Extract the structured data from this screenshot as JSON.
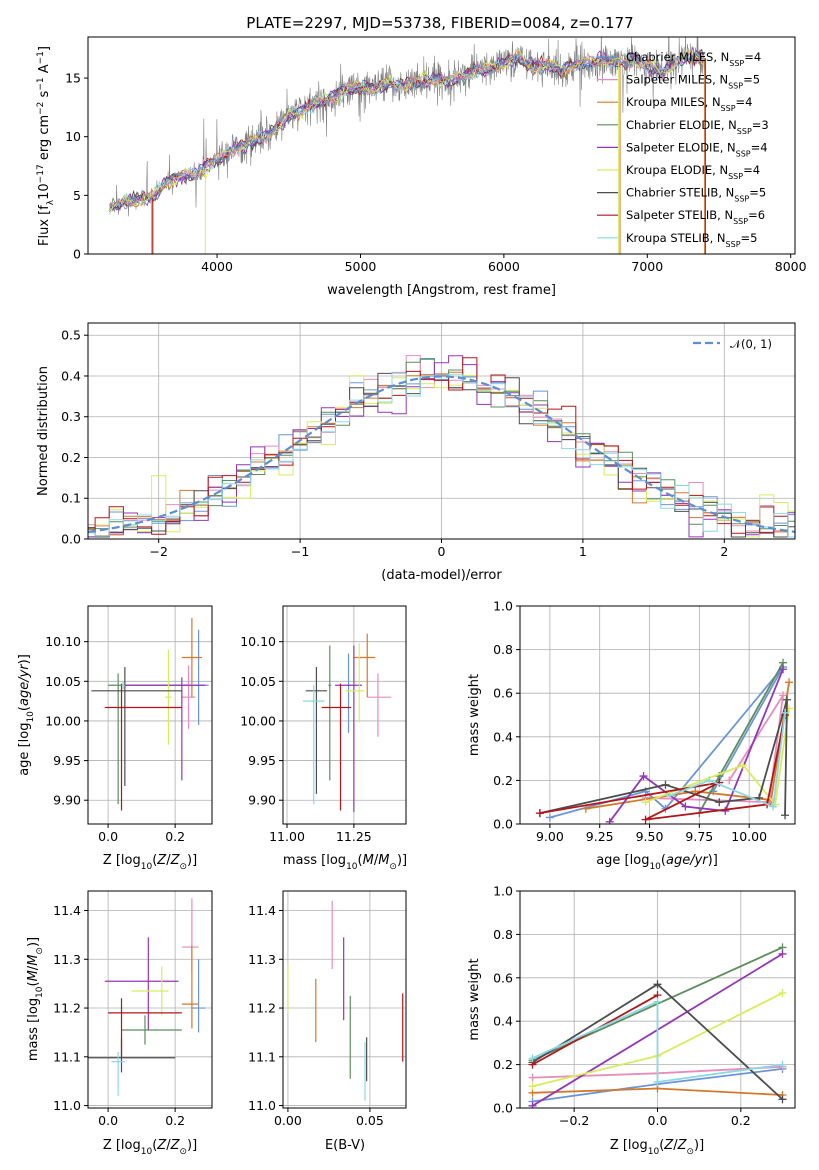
{
  "title": "PLATE=2297, MJD=53738, FIBERID=0084, z=0.177",
  "palette": {
    "c1": "#6a96d8",
    "c2": "#e88cbc",
    "c3": "#d5782a",
    "c4": "#5c8e5c",
    "c5": "#9236b5",
    "c6": "#d8ec5a",
    "c7": "#4d4d4d",
    "c8": "#b3161a",
    "c9": "#8ad8e4",
    "obs": "#808080",
    "gauss": "#5d8fd0"
  },
  "models": [
    {
      "key": "c1",
      "name": "Chabrier MILES",
      "nssp": "4"
    },
    {
      "key": "c2",
      "name": "Salpeter MILES",
      "nssp": "5"
    },
    {
      "key": "c3",
      "name": "Kroupa MILES",
      "nssp": "4"
    },
    {
      "key": "c4",
      "name": "Chabrier ELODIE",
      "nssp": "3"
    },
    {
      "key": "c5",
      "name": "Salpeter ELODIE",
      "nssp": "4"
    },
    {
      "key": "c6",
      "name": "Kroupa ELODIE",
      "nssp": "4"
    },
    {
      "key": "c7",
      "name": "Chabrier STELIB",
      "nssp": "5"
    },
    {
      "key": "c8",
      "name": "Salpeter STELIB",
      "nssp": "6"
    },
    {
      "key": "c9",
      "name": "Kroupa STELIB",
      "nssp": "5"
    }
  ],
  "chart_data": [
    {
      "id": "spectrum",
      "type": "line",
      "xlabel": "wavelength [Angstrom, rest frame]",
      "ylabel": "Flux [f_λ 10^-17 erg cm^-2 s^-1 A^-1]",
      "xlim": [
        3100,
        8030
      ],
      "ylim": [
        0,
        18.5
      ],
      "xticks": [
        4000,
        5000,
        6000,
        7000,
        8000
      ],
      "yticks": [
        0,
        5,
        10,
        15
      ],
      "continuum": [
        [
          3250,
          3.9
        ],
        [
          3350,
          4.5
        ],
        [
          3450,
          4.6
        ],
        [
          3550,
          4.8
        ],
        [
          3650,
          6.2
        ],
        [
          3750,
          6.6
        ],
        [
          3850,
          6.8
        ],
        [
          3950,
          7.6
        ],
        [
          4000,
          8.0
        ],
        [
          4100,
          8.9
        ],
        [
          4200,
          9.3
        ],
        [
          4300,
          9.8
        ],
        [
          4400,
          10.5
        ],
        [
          4500,
          11.8
        ],
        [
          4600,
          12.3
        ],
        [
          4700,
          12.9
        ],
        [
          4800,
          13.4
        ],
        [
          4900,
          14.0
        ],
        [
          5000,
          14.3
        ],
        [
          5100,
          14.0
        ],
        [
          5200,
          14.6
        ],
        [
          5300,
          14.3
        ],
        [
          5400,
          14.7
        ],
        [
          5500,
          14.9
        ],
        [
          5600,
          14.7
        ],
        [
          5700,
          15.2
        ],
        [
          5800,
          15.6
        ],
        [
          5900,
          15.8
        ],
        [
          6000,
          16.2
        ],
        [
          6100,
          16.8
        ],
        [
          6200,
          15.9
        ],
        [
          6300,
          16.1
        ],
        [
          6400,
          15.7
        ],
        [
          6500,
          16.1
        ],
        [
          6600,
          16.4
        ],
        [
          6700,
          16.5
        ],
        [
          6800,
          16.3
        ],
        [
          6900,
          16.6
        ],
        [
          7000,
          16.0
        ],
        [
          7100,
          15.5
        ],
        [
          7200,
          16.4
        ],
        [
          7300,
          16.9
        ],
        [
          7400,
          16.7
        ]
      ],
      "legend": "top-right",
      "grid": false
    },
    {
      "id": "residuals",
      "type": "histogram",
      "xlabel": "(data-model)/error",
      "ylabel": "Normed distribution",
      "xlim": [
        -2.5,
        2.5
      ],
      "ylim": [
        0,
        0.53
      ],
      "xticks": [
        -2,
        -1,
        0,
        1,
        2
      ],
      "yticks": [
        0.0,
        0.1,
        0.2,
        0.3,
        0.4,
        0.5
      ],
      "bin_width": 0.1,
      "gaussian_label": "𝒩(0, 1)",
      "legend": "top-right",
      "grid": true
    },
    {
      "id": "age_vs_Z",
      "type": "scatter",
      "xlabel": "Z [log10(Z/Z⊙)]",
      "ylabel": "age  [log10(age/yr)]",
      "xlim": [
        -0.06,
        0.31
      ],
      "ylim": [
        9.87,
        10.145
      ],
      "xticks": [
        0.0,
        0.2
      ],
      "yticks": [
        9.9,
        9.95,
        10.0,
        10.05,
        10.1
      ],
      "points": [
        {
          "c": "c1",
          "x": 0.27,
          "y": 10.045,
          "xl": 0.06,
          "xh": 0.03,
          "yl": 0.05,
          "yh": 0.07
        },
        {
          "c": "c2",
          "x": 0.24,
          "y": 10.03,
          "xl": 0.02,
          "xh": 0.02,
          "yl": 0.04,
          "yh": 0.04
        },
        {
          "c": "c3",
          "x": 0.25,
          "y": 10.08,
          "xl": 0.03,
          "xh": 0.03,
          "yl": 0.05,
          "yh": 0.05
        },
        {
          "c": "c4",
          "x": 0.03,
          "y": 10.045,
          "xl": 0.03,
          "xh": 0.2,
          "yl": 0.15,
          "yh": 0.015
        },
        {
          "c": "c5",
          "x": 0.22,
          "y": 10.045,
          "xl": 0.17,
          "xh": 0.07,
          "yl": 0.12,
          "yh": 0.01
        },
        {
          "c": "c6",
          "x": 0.18,
          "y": 10.03,
          "xl": 0.01,
          "xh": 0.01,
          "yl": 0.06,
          "yh": 0.06
        },
        {
          "c": "c7",
          "x": 0.05,
          "y": 10.038,
          "xl": 0.1,
          "xh": 0.17,
          "yl": 0.12,
          "yh": 0.03
        },
        {
          "c": "c8",
          "x": 0.04,
          "y": 10.017,
          "xl": 0.05,
          "xh": 0.18,
          "yl": 0.13,
          "yh": 0.03
        },
        {
          "c": "c9",
          "x": 0.045,
          "y": 10.045,
          "xl": 0.005,
          "xh": 0.005,
          "yl": 0.005,
          "yh": 0.005
        }
      ]
    },
    {
      "id": "age_vs_mass",
      "type": "scatter",
      "xlabel": "mass [log10(M/M⊙)]",
      "ylabel": "",
      "xlim": [
        10.985,
        11.445
      ],
      "ylim": [
        9.87,
        10.145
      ],
      "xticks": [
        11.0,
        11.25
      ],
      "yticks": [
        9.9,
        9.95,
        10.0,
        10.05,
        10.1
      ],
      "points": [
        {
          "c": "c1",
          "x": 11.23,
          "y": 10.045,
          "xl": 0.005,
          "xh": 0.005,
          "yl": 0.06,
          "yh": 0.04
        },
        {
          "c": "c2",
          "x": 11.34,
          "y": 10.03,
          "xl": 0.04,
          "xh": 0.05,
          "yl": 0.05,
          "yh": 0.03
        },
        {
          "c": "c3",
          "x": 11.3,
          "y": 10.08,
          "xl": 0.05,
          "xh": 0.03,
          "yl": 0.05,
          "yh": 0.03
        },
        {
          "c": "c4",
          "x": 11.16,
          "y": 10.045,
          "xl": 0.005,
          "xh": 0.005,
          "yl": 0.12,
          "yh": 0.05
        },
        {
          "c": "c5",
          "x": 11.25,
          "y": 10.045,
          "xl": 0.07,
          "xh": 0.03,
          "yl": 0.16,
          "yh": 0.05
        },
        {
          "c": "c6",
          "x": 11.27,
          "y": 10.038,
          "xl": 0.05,
          "xh": 0.02,
          "yl": 0.04,
          "yh": 0.06
        },
        {
          "c": "c7",
          "x": 11.11,
          "y": 10.038,
          "xl": 0.04,
          "xh": 0.04,
          "yl": 0.13,
          "yh": 0.03
        },
        {
          "c": "c8",
          "x": 11.2,
          "y": 10.017,
          "xl": 0.07,
          "xh": 0.04,
          "yl": 0.13,
          "yh": 0.03
        },
        {
          "c": "c9",
          "x": 11.1,
          "y": 10.025,
          "xl": 0.04,
          "xh": 0.04,
          "yl": 0.13,
          "yh": 0.02
        }
      ]
    },
    {
      "id": "mass_weight_vs_age",
      "type": "line",
      "xlabel": "age  [log10(age/yr)]",
      "ylabel": "mass weight",
      "xlim": [
        8.85,
        10.23
      ],
      "ylim": [
        0,
        1
      ],
      "xticks": [
        9.0,
        9.25,
        9.5,
        9.75,
        10.0
      ],
      "yticks": [
        0.0,
        0.2,
        0.4,
        0.6,
        0.8,
        1.0
      ],
      "grid": true,
      "series": [
        {
          "c": "c1",
          "x": [
            9.0,
            9.48,
            9.58,
            10.17,
            9.82
          ],
          "y": [
            0.03,
            0.15,
            0.07,
            0.72,
            0.15
          ]
        },
        {
          "c": "c2",
          "x": [
            9.48,
            10.1,
            10.17,
            9.9
          ],
          "y": [
            0.12,
            0.1,
            0.59,
            0.2
          ]
        },
        {
          "c": "c3",
          "x": [
            9.18,
            9.73,
            10.11,
            10.2
          ],
          "y": [
            0.07,
            0.15,
            0.11,
            0.65
          ]
        },
        {
          "c": "c4",
          "x": [
            9.75,
            9.85,
            10.17
          ],
          "y": [
            0.05,
            0.22,
            0.74
          ]
        },
        {
          "c": "c5",
          "x": [
            9.3,
            9.47,
            9.68,
            9.88,
            10.17
          ],
          "y": [
            0.01,
            0.22,
            0.08,
            0.06,
            0.71
          ]
        },
        {
          "c": "c6",
          "x": [
            9.48,
            9.97,
            10.13,
            10.2
          ],
          "y": [
            0.1,
            0.27,
            0.09,
            0.53
          ]
        },
        {
          "c": "c7",
          "x": [
            8.95,
            9.58,
            9.85,
            10.05,
            10.19,
            10.18
          ],
          "y": [
            0.05,
            0.18,
            0.1,
            0.12,
            0.57,
            0.04
          ]
        },
        {
          "c": "c8",
          "x": [
            8.95,
            9.85,
            9.48,
            10.09,
            10.18
          ],
          "y": [
            0.05,
            0.19,
            0.02,
            0.09,
            0.5
          ]
        },
        {
          "c": "c9",
          "x": [
            9.6,
            9.8,
            10.12,
            10.18
          ],
          "y": [
            0.13,
            0.2,
            0.08,
            0.51
          ]
        }
      ]
    },
    {
      "id": "mass_vs_Z",
      "type": "scatter",
      "xlabel": "Z [log10(Z/Z⊙)]",
      "ylabel": "mass [log10(M/M⊙)]",
      "xlim": [
        -0.06,
        0.31
      ],
      "ylim": [
        10.995,
        11.44
      ],
      "xticks": [
        0.0,
        0.2
      ],
      "yticks": [
        11.0,
        11.1,
        11.2,
        11.3,
        11.4
      ],
      "points": [
        {
          "c": "c1",
          "x": 0.27,
          "y": 11.2,
          "xl": 0.02,
          "xh": 0.02,
          "yl": 0.05,
          "yh": 0.1
        },
        {
          "c": "c2",
          "x": 0.25,
          "y": 11.325,
          "xl": 0.03,
          "xh": 0.02,
          "yl": 0.05,
          "yh": 0.1
        },
        {
          "c": "c3",
          "x": 0.25,
          "y": 11.208,
          "xl": 0.03,
          "xh": 0.02,
          "yl": 0.05,
          "yh": 0.12
        },
        {
          "c": "c4",
          "x": 0.11,
          "y": 11.155,
          "xl": 0.07,
          "xh": 0.11,
          "yl": 0.03,
          "yh": 0.03
        },
        {
          "c": "c5",
          "x": 0.12,
          "y": 11.255,
          "xl": 0.13,
          "xh": 0.09,
          "yl": 0.1,
          "yh": 0.09
        },
        {
          "c": "c6",
          "x": 0.16,
          "y": 11.235,
          "xl": 0.09,
          "xh": 0.02,
          "yl": 0.05,
          "yh": 0.05
        },
        {
          "c": "c7",
          "x": 0.04,
          "y": 11.098,
          "xl": 0.1,
          "xh": 0.16,
          "yl": 0.03,
          "yh": 0.04
        },
        {
          "c": "c8",
          "x": 0.04,
          "y": 11.19,
          "xl": 0.04,
          "xh": 0.18,
          "yl": 0.09,
          "yh": 0.03
        },
        {
          "c": "c9",
          "x": 0.03,
          "y": 11.09,
          "xl": 0.02,
          "xh": 0.02,
          "yl": 0.07,
          "yh": 0.02
        }
      ]
    },
    {
      "id": "mass_vs_ebv",
      "type": "scatter",
      "xlabel": "E(B-V)",
      "ylabel": "",
      "xlim": [
        -0.003,
        0.072
      ],
      "ylim": [
        10.995,
        11.44
      ],
      "xticks": [
        0.0,
        0.05
      ],
      "yticks": [
        11.0,
        11.1,
        11.2,
        11.3,
        11.4
      ],
      "points": [
        {
          "c": "c1",
          "x": 0.0,
          "y": 11.2,
          "xl": 0,
          "xh": 0,
          "yl": 0,
          "yh": 0
        },
        {
          "c": "c2",
          "x": 0.027,
          "y": 11.35,
          "xl": 0,
          "xh": 0,
          "yl": 0.07,
          "yh": 0.07
        },
        {
          "c": "c3",
          "x": 0.017,
          "y": 11.21,
          "xl": 0,
          "xh": 0,
          "yl": 0.08,
          "yh": 0.05
        },
        {
          "c": "c4",
          "x": 0.038,
          "y": 11.145,
          "xl": 0,
          "xh": 0,
          "yl": 0.09,
          "yh": 0.08
        },
        {
          "c": "c5",
          "x": 0.034,
          "y": 11.255,
          "xl": 0,
          "xh": 0,
          "yl": 0.08,
          "yh": 0.09
        },
        {
          "c": "c6",
          "x": 0.0,
          "y": 11.24,
          "xl": 0,
          "xh": 0,
          "yl": 0.05,
          "yh": 0.05
        },
        {
          "c": "c7",
          "x": 0.048,
          "y": 11.1,
          "xl": 0,
          "xh": 0,
          "yl": 0.05,
          "yh": 0.04
        },
        {
          "c": "c8",
          "x": 0.07,
          "y": 11.16,
          "xl": 0,
          "xh": 0,
          "yl": 0.07,
          "yh": 0.07
        },
        {
          "c": "c9",
          "x": 0.047,
          "y": 11.07,
          "xl": 0,
          "xh": 0,
          "yl": 0.06,
          "yh": 0.06
        }
      ]
    },
    {
      "id": "mass_weight_vs_Z",
      "type": "line",
      "xlabel": "Z [log10(Z/Z⊙)]",
      "ylabel": "mass weight",
      "xlim": [
        -0.33,
        0.33
      ],
      "ylim": [
        0,
        1
      ],
      "xticks": [
        -0.2,
        0.0,
        0.2
      ],
      "yticks": [
        0.0,
        0.2,
        0.4,
        0.6,
        0.8,
        1.0
      ],
      "grid": true,
      "series": [
        {
          "c": "c1",
          "x": [
            -0.3,
            0.0,
            0.3
          ],
          "y": [
            0.03,
            0.11,
            0.18
          ]
        },
        {
          "c": "c2",
          "x": [
            -0.3,
            0.0,
            0.3
          ],
          "y": [
            0.14,
            0.16,
            0.19
          ]
        },
        {
          "c": "c3",
          "x": [
            -0.3,
            0.0,
            0.3
          ],
          "y": [
            0.07,
            0.09,
            0.06
          ]
        },
        {
          "c": "c4",
          "x": [
            -0.3,
            0.3
          ],
          "y": [
            0.22,
            0.74
          ]
        },
        {
          "c": "c5",
          "x": [
            -0.3,
            0.3
          ],
          "y": [
            0.01,
            0.71
          ]
        },
        {
          "c": "c6",
          "x": [
            -0.3,
            0.0,
            0.3
          ],
          "y": [
            0.1,
            0.24,
            0.53
          ]
        },
        {
          "c": "c7",
          "x": [
            -0.3,
            0.0,
            0.3
          ],
          "y": [
            0.21,
            0.57,
            0.04
          ]
        },
        {
          "c": "c8",
          "x": [
            -0.3,
            0.0
          ],
          "y": [
            0.2,
            0.52
          ]
        },
        {
          "c": "c9",
          "x": [
            -0.3,
            0.0,
            0.0,
            0.3
          ],
          "y": [
            0.23,
            0.49,
            0.12,
            0.2
          ]
        }
      ]
    }
  ]
}
